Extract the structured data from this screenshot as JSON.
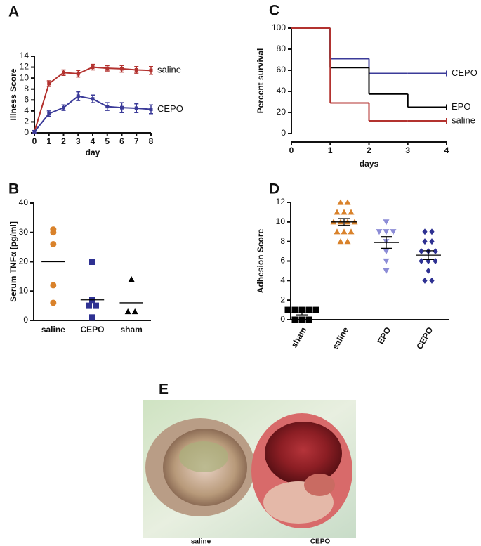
{
  "chart_data": [
    {
      "type": "line",
      "label": "A",
      "x_label": "day",
      "y_label": "Illness Score",
      "x": [
        0,
        1,
        2,
        3,
        4,
        5,
        6,
        7,
        8
      ],
      "xlim": [
        0,
        8
      ],
      "xticks": [
        0,
        1,
        2,
        3,
        4,
        5,
        6,
        7,
        8
      ],
      "ylim": [
        0,
        14
      ],
      "yticks": [
        0,
        2,
        4,
        6,
        8,
        10,
        12,
        14
      ],
      "series": [
        {
          "name": "saline",
          "color": "#b3322f",
          "values": [
            0.2,
            9,
            11,
            10.8,
            12,
            11.8,
            11.7,
            11.5,
            11.4
          ],
          "errors": [
            0.2,
            0.5,
            0.5,
            0.6,
            0.5,
            0.5,
            0.6,
            0.6,
            0.7
          ]
        },
        {
          "name": "CEPO",
          "color": "#3b3b99",
          "values": [
            0.2,
            3.5,
            4.6,
            6.7,
            6.2,
            4.8,
            4.6,
            4.5,
            4.3
          ],
          "errors": [
            0.2,
            0.5,
            0.5,
            0.8,
            0.7,
            0.7,
            0.9,
            0.8,
            0.8
          ]
        }
      ]
    },
    {
      "type": "strip",
      "label": "B",
      "y_label": "Serum TNFα [pg/ml]",
      "categories": [
        "saline",
        "CEPO",
        "sham"
      ],
      "ylim": [
        0,
        40
      ],
      "yticks": [
        0,
        10,
        20,
        30,
        40
      ],
      "colors": [
        "#d9822b",
        "#2e3192",
        "#000000"
      ],
      "markers": [
        "circle",
        "square",
        "triangle"
      ],
      "points": [
        [
          31,
          30,
          26,
          12,
          6
        ],
        [
          20,
          7,
          5,
          5,
          1
        ],
        [
          14,
          3,
          3
        ]
      ],
      "means": [
        20,
        7,
        6
      ]
    },
    {
      "type": "step",
      "label": "C",
      "x_label": "days",
      "y_label": "Percent survival",
      "x": [
        0,
        1,
        2,
        3,
        4
      ],
      "xlim": [
        0,
        4
      ],
      "xticks": [
        0,
        1,
        2,
        3,
        4
      ],
      "ylim": [
        0,
        100
      ],
      "yticks": [
        0,
        20,
        40,
        60,
        80,
        100
      ],
      "series": [
        {
          "name": "CEPO",
          "color": "#3b3b99",
          "values": [
            100,
            71,
            57,
            57,
            57
          ]
        },
        {
          "name": "EPO",
          "color": "#000000",
          "values": [
            100,
            62.5,
            37.5,
            25,
            25
          ]
        },
        {
          "name": "saline",
          "color": "#b3322f",
          "values": [
            100,
            29,
            12,
            12,
            12
          ]
        }
      ]
    },
    {
      "type": "strip",
      "label": "D",
      "y_label": "Adhesion Score",
      "categories": [
        "sham",
        "saline",
        "EPO",
        "CEPO"
      ],
      "ylim": [
        0,
        12
      ],
      "yticks": [
        0,
        2,
        4,
        6,
        8,
        10,
        12
      ],
      "colors": [
        "#000000",
        "#d9822b",
        "#8c8cd6",
        "#2e3192"
      ],
      "markers": [
        "square",
        "triangle",
        "triangle-down",
        "diamond"
      ],
      "points": [
        [
          1,
          1,
          1,
          1,
          1,
          0,
          0,
          0
        ],
        [
          12,
          12,
          11,
          11,
          11,
          10,
          10,
          10,
          10,
          9,
          9,
          9,
          8,
          8
        ],
        [
          10,
          9,
          9,
          9,
          8,
          7,
          6,
          5
        ],
        [
          9,
          9,
          8,
          8,
          7,
          7,
          7,
          6,
          6,
          6,
          5,
          4,
          4
        ]
      ],
      "means": [
        0.7,
        10,
        7.9,
        6.6
      ],
      "errors": [
        0.2,
        0.35,
        0.6,
        0.45
      ]
    }
  ],
  "photo": {
    "label": "E",
    "captions": [
      "saline",
      "CEPO"
    ]
  }
}
